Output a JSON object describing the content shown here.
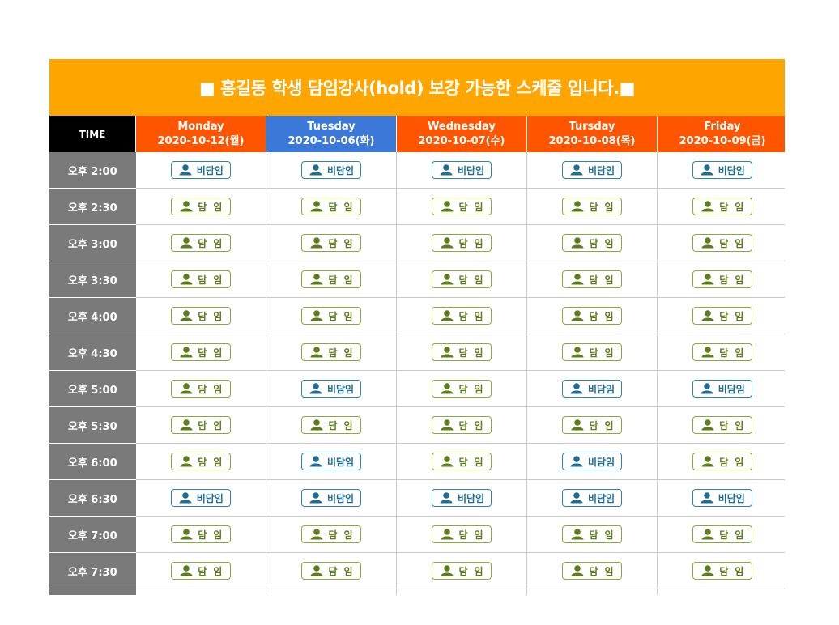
{
  "banner": {
    "title": "■ 홍길동 학생 담임강사(hold) 보강 가능한 스케줄 입니다.■"
  },
  "header": {
    "time_label": "TIME",
    "days": [
      {
        "name": "Monday",
        "date": "2020-10-12(월)",
        "color": "#ff5500"
      },
      {
        "name": "Tuesday",
        "date": "2020-10-06(화)",
        "color": "#3b78d8"
      },
      {
        "name": "Wednesday",
        "date": "2020-10-07(수)",
        "color": "#ff5500"
      },
      {
        "name": "Tursday",
        "date": "2020-10-08(목)",
        "color": "#ff5500"
      },
      {
        "name": "Friday",
        "date": "2020-10-09(금)",
        "color": "#ff5500"
      }
    ]
  },
  "colors": {
    "banner": "#ffa500",
    "time_column": "#7a7a7a",
    "homeroom_badge": "#8aaa3a",
    "non_homeroom_badge": "#2c84a8"
  },
  "labels": {
    "homeroom": "담임",
    "non_homeroom": "비담임"
  },
  "icons": {
    "badge": "user-icon"
  },
  "rows": [
    {
      "time": "오후 2:00",
      "slots": [
        "비담임",
        "비담임",
        "비담임",
        "비담임",
        "비담임"
      ]
    },
    {
      "time": "오후 2:30",
      "slots": [
        "담임",
        "담임",
        "담임",
        "담임",
        "담임"
      ]
    },
    {
      "time": "오후 3:00",
      "slots": [
        "담임",
        "담임",
        "담임",
        "담임",
        "담임"
      ]
    },
    {
      "time": "오후 3:30",
      "slots": [
        "담임",
        "담임",
        "담임",
        "담임",
        "담임"
      ]
    },
    {
      "time": "오후 4:00",
      "slots": [
        "담임",
        "담임",
        "담임",
        "담임",
        "담임"
      ]
    },
    {
      "time": "오후 4:30",
      "slots": [
        "담임",
        "담임",
        "담임",
        "담임",
        "담임"
      ]
    },
    {
      "time": "오후 5:00",
      "slots": [
        "담임",
        "비담임",
        "담임",
        "비담임",
        "비담임"
      ]
    },
    {
      "time": "오후 5:30",
      "slots": [
        "담임",
        "담임",
        "담임",
        "담임",
        "담임"
      ]
    },
    {
      "time": "오후 6:00",
      "slots": [
        "담임",
        "비담임",
        "담임",
        "비담임",
        "담임"
      ]
    },
    {
      "time": "오후 6:30",
      "slots": [
        "비담임",
        "비담임",
        "비담임",
        "비담임",
        "비담임"
      ]
    },
    {
      "time": "오후 7:00",
      "slots": [
        "담임",
        "담임",
        "담임",
        "담임",
        "담임"
      ]
    },
    {
      "time": "오후 7:30",
      "slots": [
        "담임",
        "담임",
        "담임",
        "담임",
        "담임"
      ]
    }
  ]
}
